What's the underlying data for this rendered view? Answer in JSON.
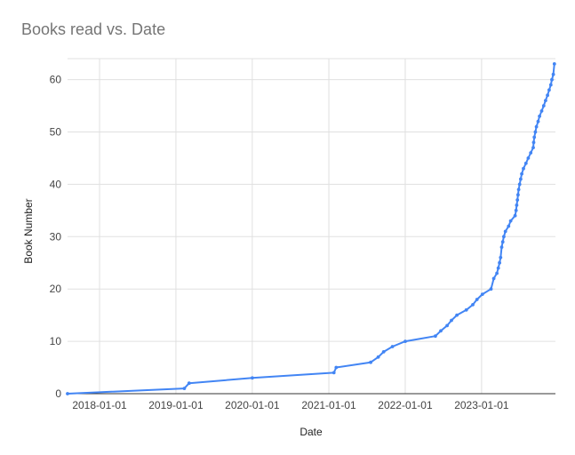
{
  "chart_data": {
    "type": "line",
    "title": "Books read vs. Date",
    "xlabel": "Date",
    "ylabel": "Book Number",
    "xlim": [
      "2017-08-01",
      "2023-12-20"
    ],
    "ylim": [
      0,
      64
    ],
    "x_ticks": [
      "2018-01-01",
      "2019-01-01",
      "2020-01-01",
      "2021-01-01",
      "2022-01-01",
      "2023-01-01"
    ],
    "y_ticks": [
      0,
      10,
      20,
      30,
      40,
      50,
      60
    ],
    "grid": true,
    "legend": "none",
    "color": "#4285f4",
    "series": [
      {
        "x": [
          "2017-08-01",
          "2019-02-10",
          "2019-03-05",
          "2020-01-01",
          "2021-01-25",
          "2021-02-05",
          "2021-07-20",
          "2021-08-25",
          "2021-09-20",
          "2021-11-01",
          "2022-01-01",
          "2022-05-25",
          "2022-06-20",
          "2022-07-20",
          "2022-08-10",
          "2022-09-05",
          "2022-10-20",
          "2022-11-20",
          "2022-12-10",
          "2023-01-05",
          "2023-02-15",
          "2023-02-28",
          "2023-03-15",
          "2023-03-22",
          "2023-03-28",
          "2023-04-02",
          "2023-04-07",
          "2023-04-12",
          "2023-04-17",
          "2023-04-25",
          "2023-05-10",
          "2023-05-20",
          "2023-06-10",
          "2023-06-15",
          "2023-06-18",
          "2023-06-21",
          "2023-06-24",
          "2023-06-27",
          "2023-07-02",
          "2023-07-07",
          "2023-07-12",
          "2023-07-20",
          "2023-08-01",
          "2023-08-12",
          "2023-08-24",
          "2023-09-05",
          "2023-09-07",
          "2023-09-10",
          "2023-09-15",
          "2023-09-20",
          "2023-09-28",
          "2023-10-05",
          "2023-10-15",
          "2023-10-25",
          "2023-11-03",
          "2023-11-12",
          "2023-11-20",
          "2023-11-28",
          "2023-12-03",
          "2023-12-10",
          "2023-12-15"
        ],
        "y": [
          0,
          1,
          2,
          3,
          4,
          5,
          6,
          7,
          8,
          9,
          10,
          11,
          12,
          13,
          14,
          15,
          16,
          17,
          18,
          19,
          20,
          22,
          23,
          24,
          25,
          26,
          28,
          29,
          30,
          31,
          32,
          33,
          34,
          35,
          36,
          37,
          38,
          39,
          40,
          41,
          42,
          43,
          44,
          45,
          46,
          47,
          48,
          49,
          50,
          51,
          52,
          53,
          54,
          55,
          56,
          57,
          58,
          59,
          60,
          61,
          63
        ]
      }
    ]
  }
}
